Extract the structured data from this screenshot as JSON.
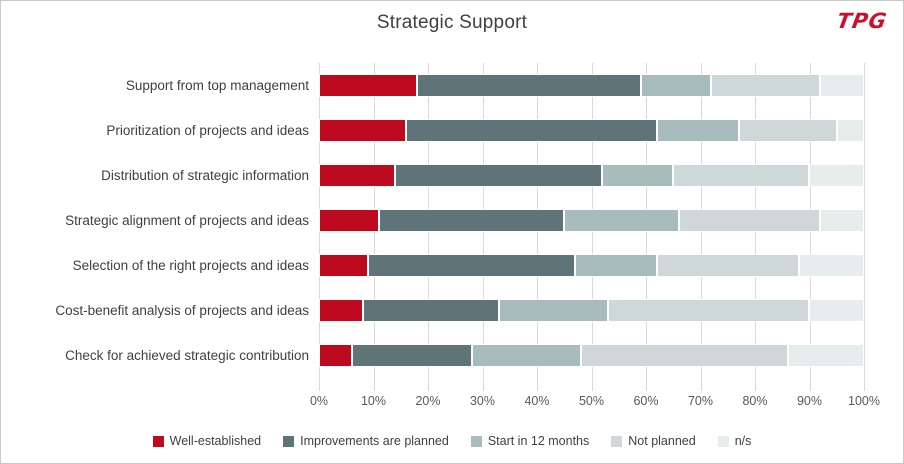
{
  "title": "Strategic Support",
  "logo": {
    "text": "TPG",
    "color": "#CE0E2D"
  },
  "chart_data": {
    "type": "bar",
    "orientation": "horizontal",
    "stacked": true,
    "units": "percent",
    "title": "Strategic Support",
    "categories": [
      "Support from top management",
      "Prioritization of projects and ideas",
      "Distribution of strategic information",
      "Strategic alignment of projects and ideas",
      "Selection of the right projects and ideas",
      "Cost-benefit analysis of projects and ideas",
      "Check for achieved strategic contribution"
    ],
    "series": [
      {
        "name": "Well-established",
        "color": "#BE0A1E",
        "values": [
          18,
          16,
          14,
          11,
          9,
          8,
          6
        ]
      },
      {
        "name": "Improvements are planned",
        "color": "#5E7478",
        "values": [
          41,
          46,
          38,
          34,
          38,
          25,
          22
        ]
      },
      {
        "name": "Start in 12 months",
        "color": "#A9BCBD",
        "values": [
          13,
          15,
          13,
          21,
          15,
          20,
          20
        ]
      },
      {
        "name": "Not planned",
        "color": "#CED8D9",
        "values": [
          20,
          18,
          25,
          26,
          26,
          37,
          38
        ]
      },
      {
        "name": "n/s",
        "color": "#E7EDED",
        "values": [
          8,
          5,
          10,
          8,
          12,
          10,
          14
        ]
      }
    ],
    "x_ticks": [
      "0%",
      "10%",
      "20%",
      "30%",
      "40%",
      "50%",
      "60%",
      "70%",
      "80%",
      "90%",
      "100%"
    ],
    "xlim": [
      0,
      100
    ],
    "grid": true,
    "legend_position": "bottom"
  },
  "colors": {
    "gridline": "#D9D9D9",
    "axis_text": "#595959",
    "label_text": "#404040",
    "title_text": "#404040"
  }
}
